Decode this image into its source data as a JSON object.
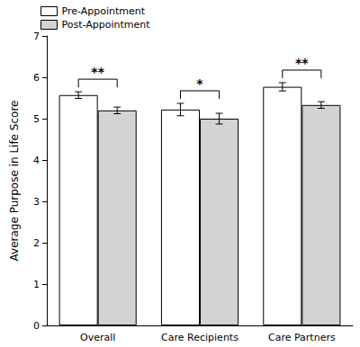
{
  "chart_data": {
    "type": "bar",
    "y_label": "Average Purpose in Life Score",
    "categories": [
      "Overall",
      "Care Recipients",
      "Care Partners"
    ],
    "series": [
      {
        "name": "Pre-Appointment",
        "color": "#ffffff",
        "values": [
          5.57,
          5.22,
          5.77
        ],
        "errors": [
          0.08,
          0.15,
          0.1
        ]
      },
      {
        "name": "Post-Appointment",
        "color": "#d3d3d3",
        "values": [
          5.2,
          5.0,
          5.33
        ],
        "errors": [
          0.08,
          0.13,
          0.08
        ]
      }
    ],
    "annotations": [
      {
        "category": "Overall",
        "label": "**"
      },
      {
        "category": "Care Recipients",
        "label": "*"
      },
      {
        "category": "Care Partners",
        "label": "**"
      }
    ],
    "ylim": [
      0,
      7
    ],
    "yticks": [
      0,
      1,
      2,
      3,
      4,
      5,
      6,
      7
    ],
    "grid": false,
    "legend": "top-left"
  }
}
